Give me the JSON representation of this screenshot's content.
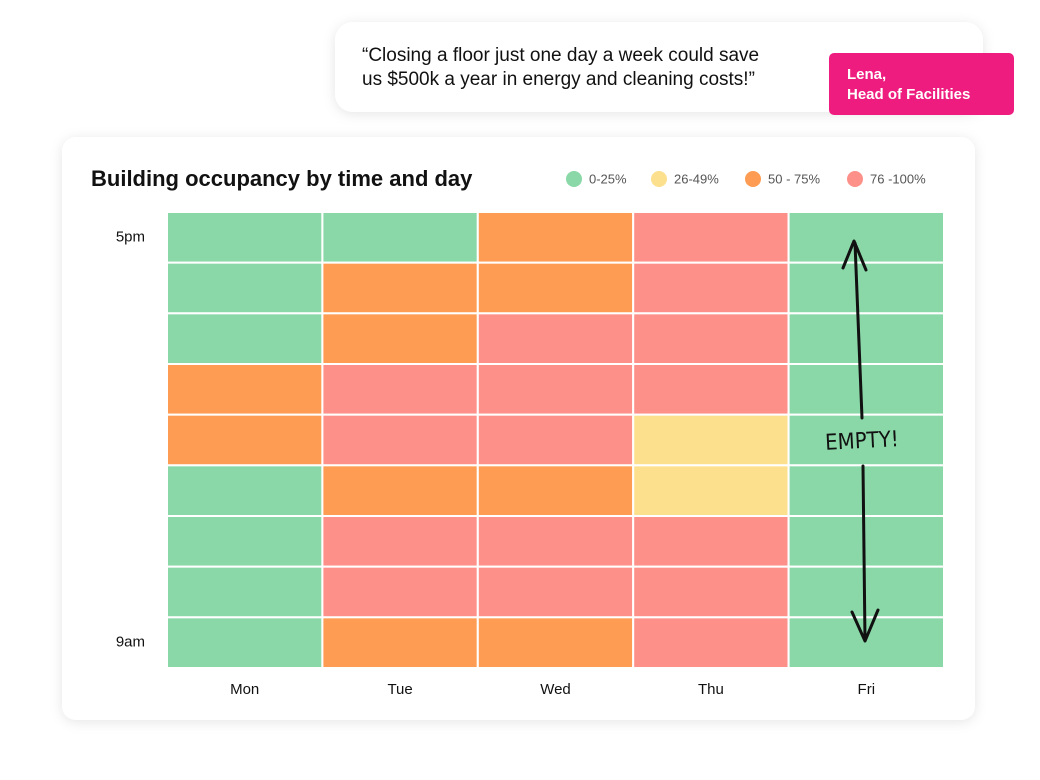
{
  "quote": {
    "lines": [
      "“Closing a floor just one day a week could save",
      "us $500k a year in energy and cleaning costs!”"
    ]
  },
  "attribution": {
    "lines": [
      "Lena,",
      "Head of Facilities"
    ]
  },
  "chart_data": {
    "type": "heatmap",
    "title": "Building occupancy by time and day",
    "categories": [
      "Mon",
      "Tue",
      "Wed",
      "Thu",
      "Fri"
    ],
    "rows": [
      "5pm",
      null,
      null,
      null,
      null,
      null,
      null,
      null,
      "9am"
    ],
    "legend": [
      {
        "name": "0-25%",
        "color": "#8ad8a8"
      },
      {
        "name": "26-49%",
        "color": "#fde08e"
      },
      {
        "name": "50 - 75%",
        "color": "#fd9c52"
      },
      {
        "name": "76 -100%",
        "color": "#fd918a"
      }
    ],
    "cells": [
      [
        "0-25%",
        "0-25%",
        "50 - 75%",
        "76 -100%",
        "0-25%"
      ],
      [
        "0-25%",
        "50 - 75%",
        "50 - 75%",
        "76 -100%",
        "0-25%"
      ],
      [
        "0-25%",
        "50 - 75%",
        "76 -100%",
        "76 -100%",
        "0-25%"
      ],
      [
        "50 - 75%",
        "76 -100%",
        "76 -100%",
        "76 -100%",
        "0-25%"
      ],
      [
        "50 - 75%",
        "76 -100%",
        "76 -100%",
        "26-49%",
        "0-25%"
      ],
      [
        "0-25%",
        "50 - 75%",
        "50 - 75%",
        "26-49%",
        "0-25%"
      ],
      [
        "0-25%",
        "76 -100%",
        "76 -100%",
        "76 -100%",
        "0-25%"
      ],
      [
        "0-25%",
        "76 -100%",
        "76 -100%",
        "76 -100%",
        "0-25%"
      ],
      [
        "0-25%",
        "50 - 75%",
        "50 - 75%",
        "76 -100%",
        "0-25%"
      ]
    ],
    "annotation": "EMPTY!"
  }
}
